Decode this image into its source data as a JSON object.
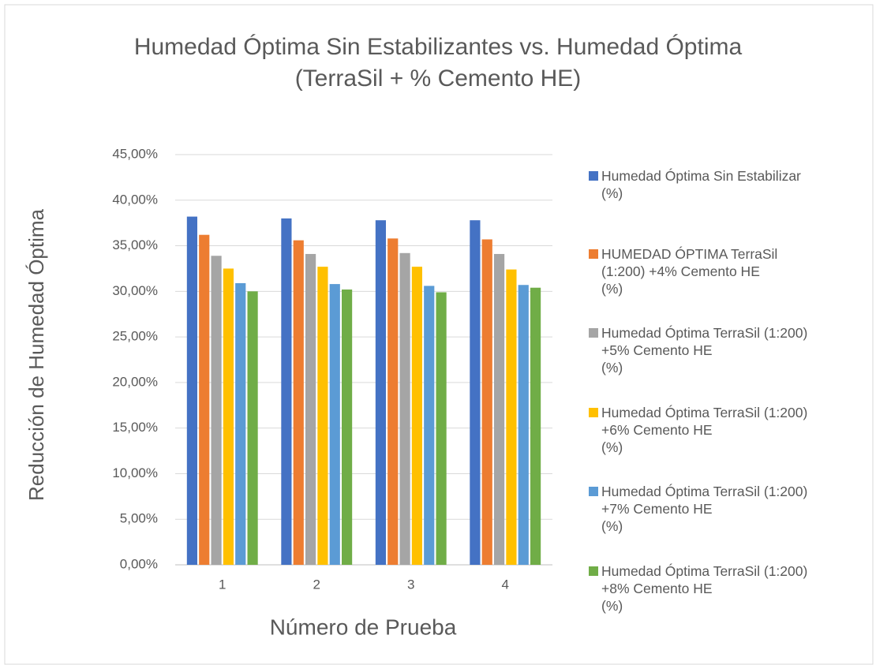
{
  "chart_data": {
    "type": "bar",
    "title": "Humedad Óptima Sin Estabilizantes vs. Humedad Óptima\n(TerraSil + % Cemento HE)",
    "x_label": "Número de Prueba",
    "y_label": "Reducción de Humedad Óptima",
    "categories": [
      "1",
      "2",
      "3",
      "4"
    ],
    "series": [
      {
        "name": "Humedad Óptima  Sin Estabilizar\n(%)",
        "color": "#4472c4",
        "values": [
          38.2,
          38.0,
          37.8,
          37.8
        ]
      },
      {
        "name": "HUMEDAD ÓPTIMA TerraSil\n(1:200) +4% Cemento HE\n(%)",
        "color": "#ed7d31",
        "values": [
          36.2,
          35.6,
          35.8,
          35.7
        ]
      },
      {
        "name": "Humedad Óptima TerraSil (1:200)\n+5% Cemento HE\n(%)",
        "color": "#a5a5a5",
        "values": [
          33.9,
          34.1,
          34.2,
          34.1
        ]
      },
      {
        "name": "Humedad Óptima TerraSil (1:200)\n+6% Cemento HE\n(%)",
        "color": "#ffc000",
        "values": [
          32.5,
          32.7,
          32.7,
          32.4
        ]
      },
      {
        "name": "Humedad Óptima TerraSil (1:200)\n+7% Cemento HE\n(%)",
        "color": "#5b9bd5",
        "values": [
          30.9,
          30.8,
          30.6,
          30.7
        ]
      },
      {
        "name": "Humedad Óptima TerraSil (1:200)\n+8% Cemento HE\n(%)",
        "color": "#70ad47",
        "values": [
          30.0,
          30.2,
          29.9,
          30.4
        ]
      }
    ],
    "ylim": [
      0,
      45
    ],
    "yticks": [
      {
        "value": 0,
        "label": "0,00%"
      },
      {
        "value": 5,
        "label": "5,00%"
      },
      {
        "value": 10,
        "label": "10,00%"
      },
      {
        "value": 15,
        "label": "15,00%"
      },
      {
        "value": 20,
        "label": "20,00%"
      },
      {
        "value": 25,
        "label": "25,00%"
      },
      {
        "value": 30,
        "label": "30,00%"
      },
      {
        "value": 35,
        "label": "35,00%"
      },
      {
        "value": 40,
        "label": "40,00%"
      },
      {
        "value": 45,
        "label": "45,00%"
      }
    ],
    "grid": true,
    "legend": "right"
  }
}
